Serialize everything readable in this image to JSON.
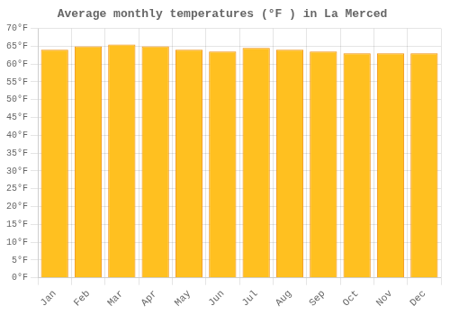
{
  "chart_data": {
    "type": "bar",
    "title": "Average monthly temperatures (°F ) in La Merced",
    "categories": [
      "Jan",
      "Feb",
      "Mar",
      "Apr",
      "May",
      "Jun",
      "Jul",
      "Aug",
      "Sep",
      "Oct",
      "Nov",
      "Dec"
    ],
    "values": [
      64,
      65,
      65.5,
      65,
      64,
      63.5,
      64.5,
      64,
      63.5,
      63,
      63,
      63
    ],
    "color": "#FFC020",
    "ylim": [
      0,
      70
    ],
    "yticks": [
      {
        "value": 0,
        "label": "0°F"
      },
      {
        "value": 5,
        "label": "5°F"
      },
      {
        "value": 10,
        "label": "10°F"
      },
      {
        "value": 15,
        "label": "15°F"
      },
      {
        "value": 20,
        "label": "20°F"
      },
      {
        "value": 25,
        "label": "25°F"
      },
      {
        "value": 30,
        "label": "30°F"
      },
      {
        "value": 35,
        "label": "35°F"
      },
      {
        "value": 40,
        "label": "40°F"
      },
      {
        "value": 45,
        "label": "45°F"
      },
      {
        "value": 50,
        "label": "50°F"
      },
      {
        "value": 55,
        "label": "55°F"
      },
      {
        "value": 60,
        "label": "60°F"
      },
      {
        "value": 65,
        "label": "65°F"
      },
      {
        "value": 70,
        "label": "70°F"
      }
    ],
    "grid": true
  }
}
